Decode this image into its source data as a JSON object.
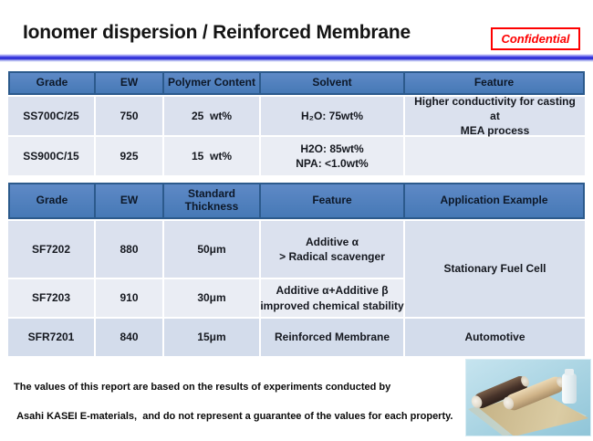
{
  "slide": {
    "title": "Ionomer dispersion / Reinforced Membrane",
    "confidential_label": "Confidential"
  },
  "dispersion_table": {
    "columns": [
      "Grade",
      "EW",
      "Polymer Content",
      "Solvent",
      "Feature"
    ],
    "rows": [
      {
        "grade": "SS700C/25",
        "ew": "750",
        "polymer_content": "25  wt%",
        "solvent_lines": [
          "H₂O: 75wt%"
        ],
        "feature_lines": [
          "Higher conductivity for casting at",
          "MEA process"
        ]
      },
      {
        "grade": "SS900C/15",
        "ew": "925",
        "polymer_content": "15  wt%",
        "solvent_lines": [
          "H2O: 85wt%",
          "NPA: <1.0wt%"
        ],
        "feature_lines": []
      }
    ]
  },
  "membrane_table": {
    "columns": [
      "Grade",
      "EW",
      "Standard Thickness",
      "Feature",
      "Application Example"
    ],
    "rows": [
      {
        "grade": "SF7202",
        "ew": "880",
        "thickness": "50μm",
        "feature_lines": [
          "Additive α",
          "> Radical scavenger"
        ]
      },
      {
        "grade": "SF7203",
        "ew": "910",
        "thickness": "30μm",
        "feature_lines": [
          "Additive α+Additive β",
          "improved chemical stability"
        ]
      },
      {
        "grade": "SFR7201",
        "ew": "840",
        "thickness": "15μm",
        "feature_lines": [
          "Reinforced Membrane"
        ]
      }
    ],
    "applications": {
      "stationary": "Stationary Fuel Cell",
      "automotive": "Automotive"
    }
  },
  "footnote": {
    "line1": "The values of this report are based on the results of experiments conducted by",
    "line2": " Asahi KASEI E-materials,  and do not represent a guarantee of the values for each property."
  },
  "colors": {
    "header_blue": "#4E7EBB",
    "table_border_navy": "#2C5A8C",
    "row_dark": "#DBE1EE",
    "row_light": "#EAEDF4",
    "accent_red": "#FE0000",
    "divider_blue": "#2626D2",
    "photo_background": "#A8D3E2"
  }
}
